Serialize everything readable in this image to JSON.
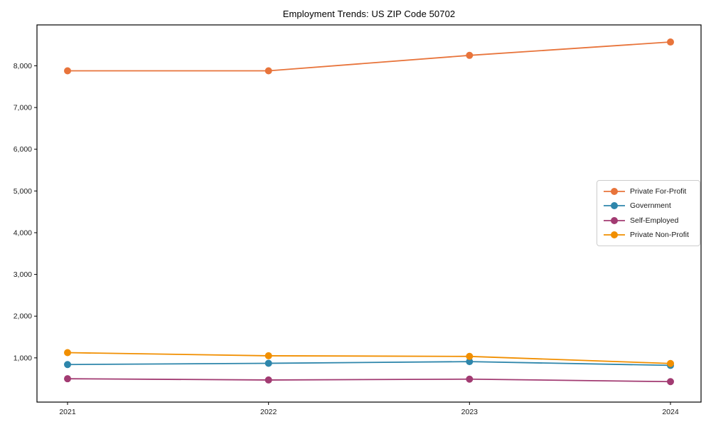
{
  "title": "Employment Trends: US ZIP Code 50702",
  "chart_data": {
    "type": "line",
    "title": "Employment Trends: US ZIP Code 50702",
    "xlabel": "",
    "ylabel": "",
    "categories": [
      "2021",
      "2022",
      "2023",
      "2024"
    ],
    "series": [
      {
        "name": "Private For-Profit",
        "color": "#E8743B",
        "values": [
          7880,
          7880,
          8250,
          8570
        ]
      },
      {
        "name": "Government",
        "color": "#2E86AB",
        "values": [
          840,
          870,
          910,
          820
        ]
      },
      {
        "name": "Self-Employed",
        "color": "#A23B72",
        "values": [
          500,
          470,
          490,
          430
        ]
      },
      {
        "name": "Private Non-Profit",
        "color": "#F18F01",
        "values": [
          1125,
          1050,
          1035,
          865
        ]
      }
    ],
    "ylim": [
      -60,
      8980
    ],
    "yticks": [
      1000,
      2000,
      3000,
      4000,
      5000,
      6000,
      7000,
      8000
    ],
    "grid": false,
    "legend_position": "center-right",
    "marker": "circle",
    "axis_color": "#000000",
    "tick_label_color": "#1a1a1a"
  }
}
